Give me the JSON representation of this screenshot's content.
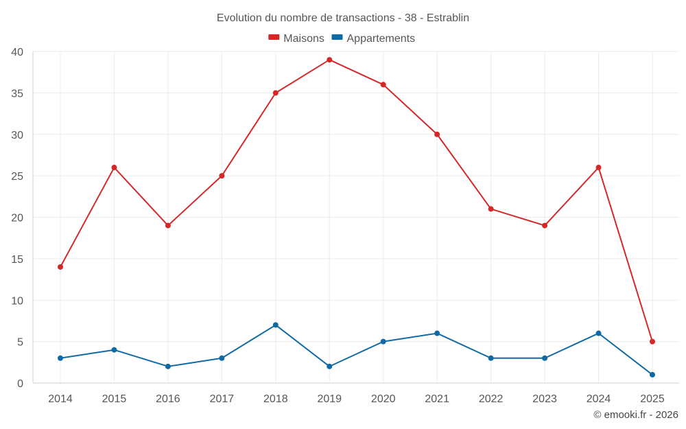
{
  "chart_data": {
    "type": "line",
    "title": "Evolution du nombre de transactions - 38 - Estrablin",
    "categories": [
      "2014",
      "2015",
      "2016",
      "2017",
      "2018",
      "2019",
      "2020",
      "2021",
      "2022",
      "2023",
      "2024",
      "2025"
    ],
    "series": [
      {
        "name": "Maisons",
        "color": "#d62728",
        "values": [
          14,
          26,
          19,
          25,
          35,
          39,
          36,
          30,
          21,
          19,
          26,
          5
        ]
      },
      {
        "name": "Appartements",
        "color": "#0f6aa3",
        "values": [
          3,
          4,
          2,
          3,
          7,
          2,
          5,
          6,
          3,
          3,
          6,
          1
        ]
      }
    ],
    "ylim": [
      0,
      40
    ],
    "yticks": [
      0,
      5,
      10,
      15,
      20,
      25,
      30,
      35,
      40
    ],
    "xlabel": "",
    "ylabel": "",
    "legend": "top-center",
    "grid": true
  },
  "credit": "© emooki.fr - 2026"
}
